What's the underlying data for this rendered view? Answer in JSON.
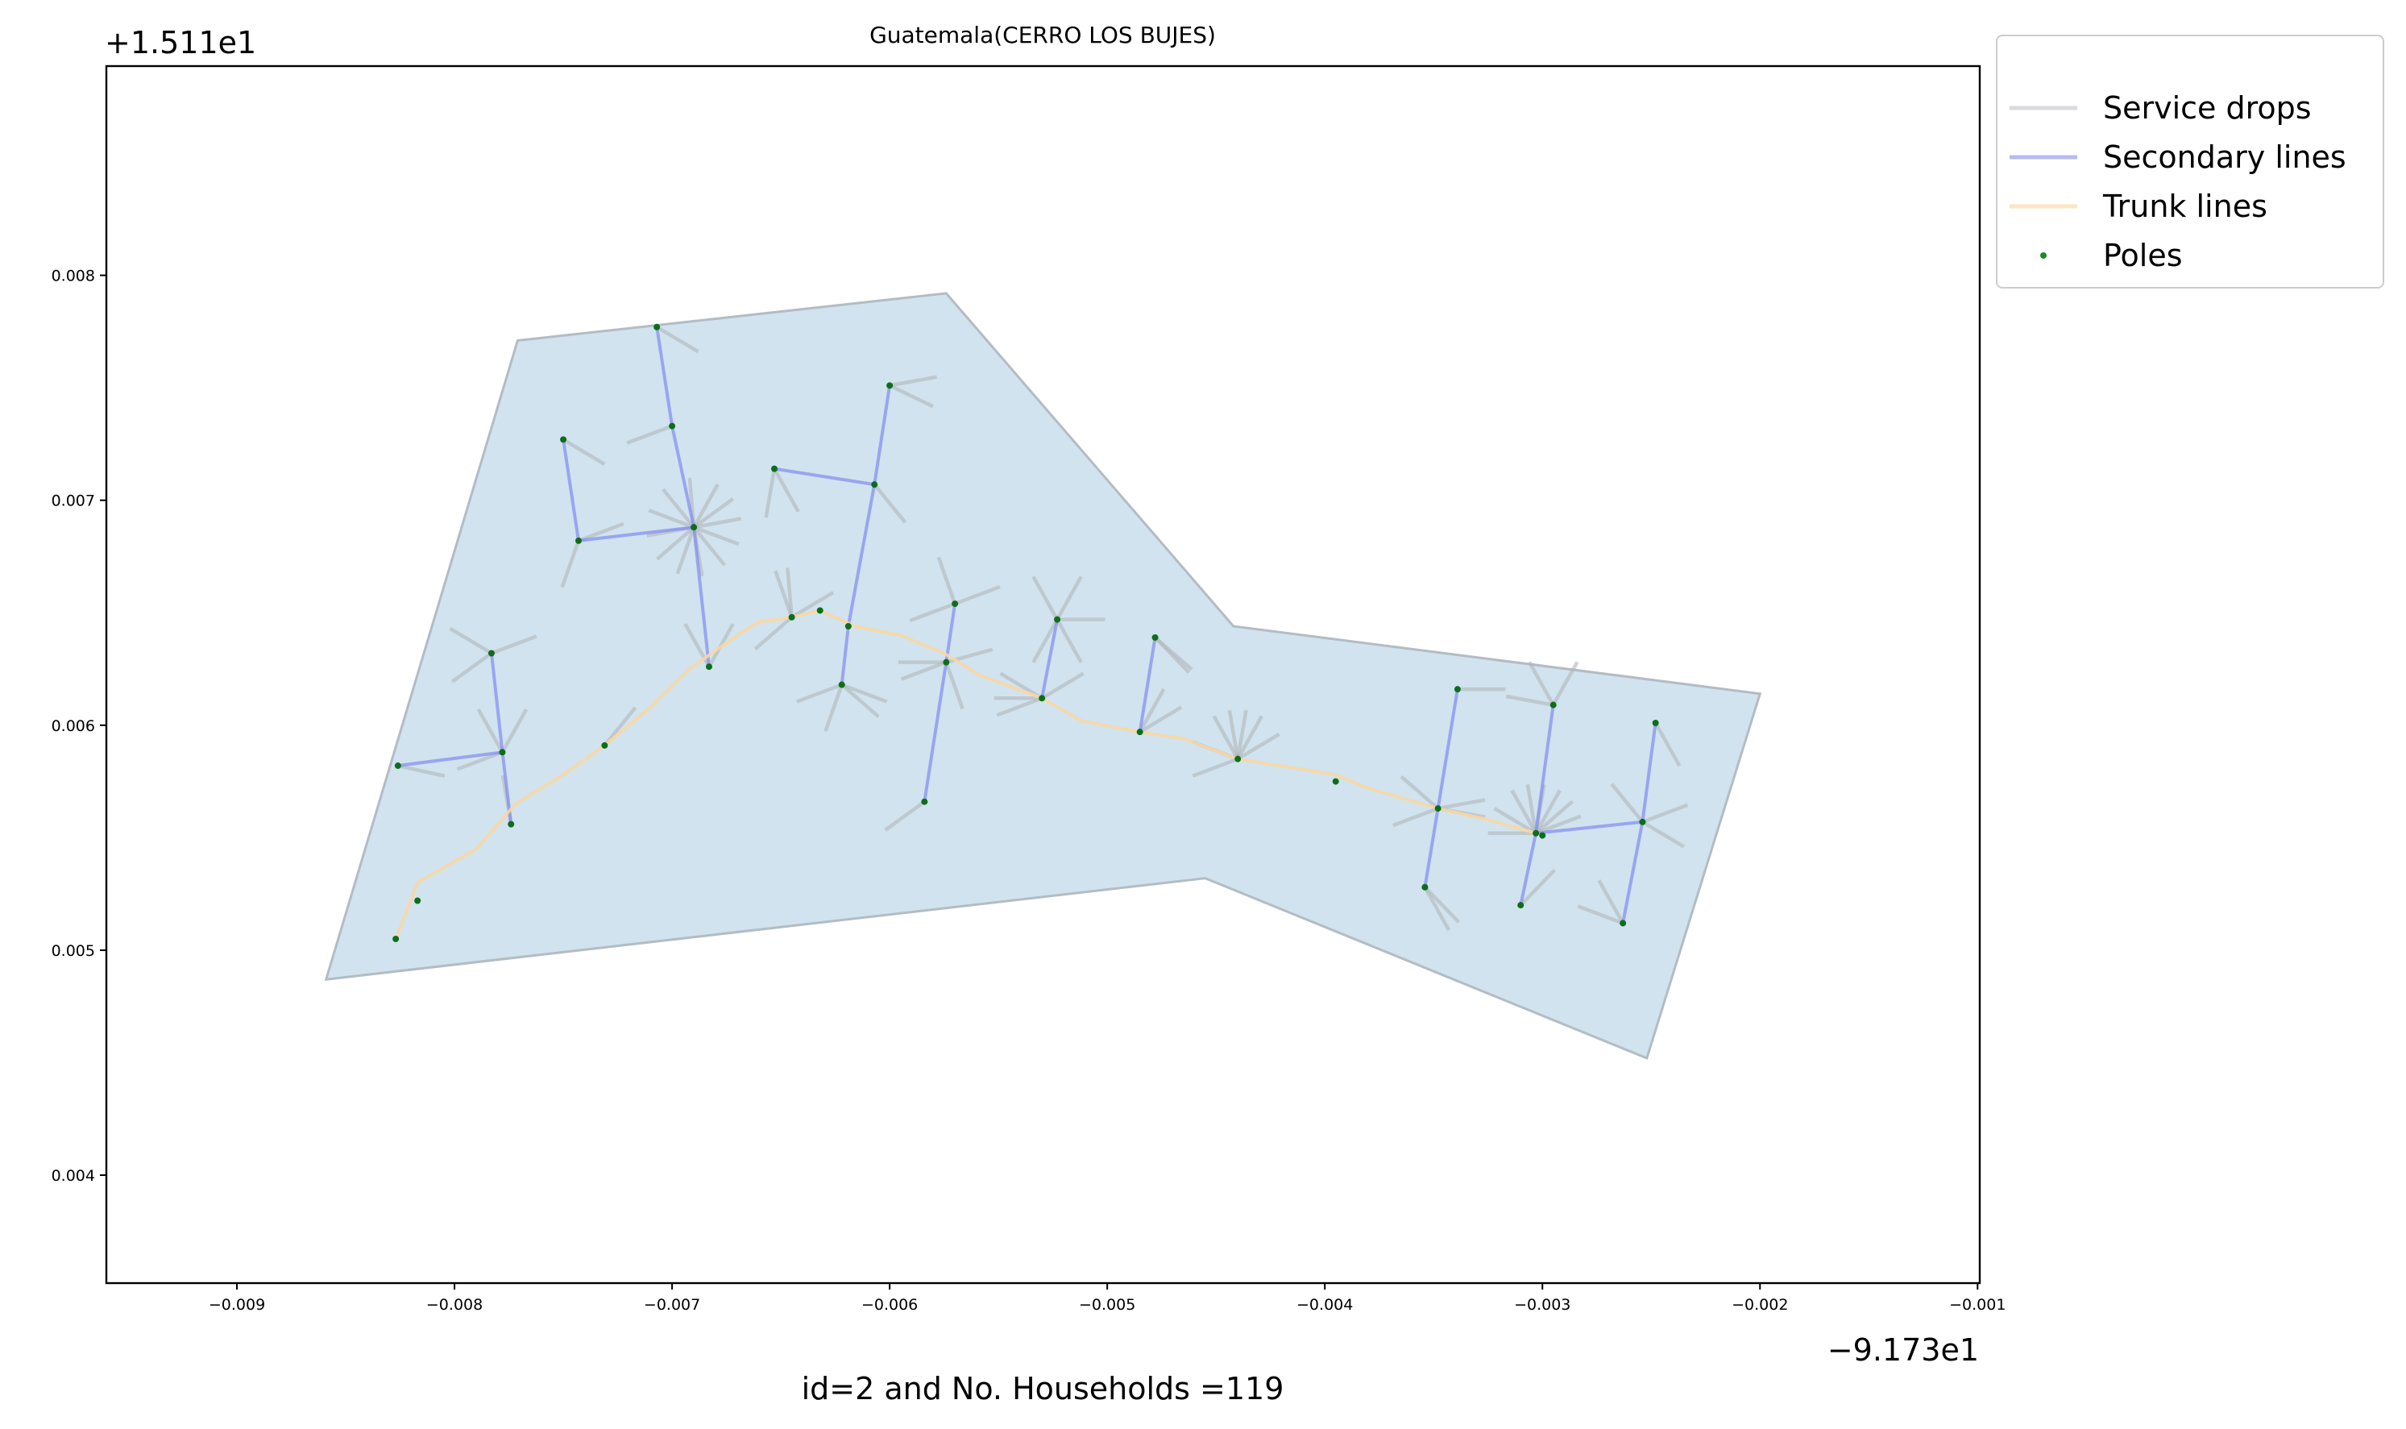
{
  "chart_data": {
    "type": "scatter",
    "title": "Guatemala(CERRO LOS BUJES)",
    "xlabel": "id=2 and No. Households =119",
    "ylabel": "",
    "x_offset_label": "−9.173e1",
    "y_offset_label": "+1.511e1",
    "xlim": [
      -0.0096,
      -0.00099
    ],
    "ylim": [
      0.00352,
      0.00893
    ],
    "x_ticks": [
      -0.009,
      -0.008,
      -0.007,
      -0.006,
      -0.005,
      -0.004,
      -0.003,
      -0.002,
      -0.001
    ],
    "x_tick_labels": [
      "−0.009",
      "−0.008",
      "−0.007",
      "−0.006",
      "−0.005",
      "−0.004",
      "−0.003",
      "−0.002",
      "−0.001"
    ],
    "y_ticks": [
      0.004,
      0.005,
      0.006,
      0.007,
      0.008
    ],
    "y_tick_labels": [
      "0.004",
      "0.005",
      "0.006",
      "0.007",
      "0.008"
    ],
    "grid": false,
    "legend_position": "outside-right",
    "colors": {
      "polygon_fill": "#d1e3ee",
      "polygon_edge": "#b3bcc4",
      "service_drops": "#b0b5bb",
      "secondary_lines": "#7b84f5",
      "trunk_lines": "#fbd7a0",
      "poles": "#0d6e1a"
    },
    "legend": [
      {
        "label": "Service drops",
        "type": "line",
        "color": "#d8dadd"
      },
      {
        "label": "Secondary lines",
        "type": "line",
        "color": "#b7baf2"
      },
      {
        "label": "Trunk lines",
        "type": "line",
        "color": "#fde6c2"
      },
      {
        "label": "Poles",
        "type": "dot",
        "color": "#1f8a2a"
      }
    ],
    "area_polygon": [
      [
        -0.00859,
        0.00487
      ],
      [
        -0.00771,
        0.00771
      ],
      [
        -0.00574,
        0.00792
      ],
      [
        -0.00442,
        0.00644
      ],
      [
        -0.002,
        0.00614
      ],
      [
        -0.00252,
        0.00452
      ],
      [
        -0.00455,
        0.00532
      ],
      [
        -0.00859,
        0.00487
      ]
    ],
    "trunk_line": [
      [
        -0.00827,
        0.00505
      ],
      [
        -0.00817,
        0.0053
      ],
      [
        -0.0079,
        0.00545
      ],
      [
        -0.00772,
        0.00565
      ],
      [
        -0.0075,
        0.00578
      ],
      [
        -0.00731,
        0.00591
      ],
      [
        -0.0071,
        0.00608
      ],
      [
        -0.00692,
        0.00625
      ],
      [
        -0.0067,
        0.0064
      ],
      [
        -0.0066,
        0.00646
      ],
      [
        -0.00645,
        0.00648
      ],
      [
        -0.00632,
        0.00651
      ],
      [
        -0.00616,
        0.00644
      ],
      [
        -0.00595,
        0.0064
      ],
      [
        -0.00575,
        0.00632
      ],
      [
        -0.00558,
        0.00622
      ],
      [
        -0.0053,
        0.00612
      ],
      [
        -0.00512,
        0.00602
      ],
      [
        -0.00485,
        0.00597
      ],
      [
        -0.00465,
        0.00594
      ],
      [
        -0.0044,
        0.00585
      ],
      [
        -0.00395,
        0.00578
      ],
      [
        -0.0038,
        0.00572
      ],
      [
        -0.00348,
        0.00563
      ],
      [
        -0.00325,
        0.00558
      ],
      [
        -0.00303,
        0.00552
      ]
    ],
    "secondary_lines": [
      [
        [
          -0.00826,
          0.00582
        ],
        [
          -0.00778,
          0.00588
        ],
        [
          -0.00774,
          0.00556
        ]
      ],
      [
        [
          -0.00778,
          0.00588
        ],
        [
          -0.00783,
          0.00632
        ]
      ],
      [
        [
          -0.00743,
          0.00682
        ],
        [
          -0.0075,
          0.00727
        ]
      ],
      [
        [
          -0.00743,
          0.00682
        ],
        [
          -0.0069,
          0.00688
        ],
        [
          -0.007,
          0.00733
        ],
        [
          -0.00707,
          0.00777
        ]
      ],
      [
        [
          -0.0069,
          0.00688
        ],
        [
          -0.00683,
          0.00626
        ]
      ],
      [
        [
          -0.00653,
          0.00714
        ],
        [
          -0.00607,
          0.00707
        ],
        [
          -0.006,
          0.00751
        ]
      ],
      [
        [
          -0.00607,
          0.00707
        ],
        [
          -0.00619,
          0.00644
        ],
        [
          -0.00622,
          0.00618
        ]
      ],
      [
        [
          -0.00584,
          0.00566
        ],
        [
          -0.00574,
          0.00628
        ],
        [
          -0.0057,
          0.00654
        ]
      ],
      [
        [
          -0.0053,
          0.00612
        ],
        [
          -0.00523,
          0.00647
        ]
      ],
      [
        [
          -0.00485,
          0.00597
        ],
        [
          -0.00478,
          0.00639
        ]
      ],
      [
        [
          -0.00354,
          0.00528
        ],
        [
          -0.00348,
          0.00563
        ],
        [
          -0.00339,
          0.00616
        ]
      ],
      [
        [
          -0.0031,
          0.0052
        ],
        [
          -0.00303,
          0.00552
        ],
        [
          -0.00295,
          0.00609
        ]
      ],
      [
        [
          -0.00303,
          0.00552
        ],
        [
          -0.00254,
          0.00557
        ],
        [
          -0.00248,
          0.00601
        ]
      ],
      [
        [
          -0.00254,
          0.00557
        ],
        [
          -0.00263,
          0.00512
        ]
      ]
    ],
    "service_drops_segment_length": 0.00022,
    "service_drops": [
      [
        -0.00826,
        0.00582,
        -12
      ],
      [
        -0.00778,
        0.00588,
        60
      ],
      [
        -0.00778,
        0.00588,
        120
      ],
      [
        -0.00778,
        0.00588,
        200
      ],
      [
        -0.00783,
        0.00632,
        20
      ],
      [
        -0.00783,
        0.00632,
        150
      ],
      [
        -0.00783,
        0.00632,
        215
      ],
      [
        -0.00774,
        0.00556,
        100
      ],
      [
        -0.0075,
        0.00727,
        -30
      ],
      [
        -0.00743,
        0.00682,
        20
      ],
      [
        -0.00743,
        0.00682,
        250
      ],
      [
        -0.0069,
        0.00688,
        10
      ],
      [
        -0.0069,
        0.00688,
        35
      ],
      [
        -0.0069,
        0.00688,
        60
      ],
      [
        -0.0069,
        0.00688,
        95
      ],
      [
        -0.0069,
        0.00688,
        130
      ],
      [
        -0.0069,
        0.00688,
        160
      ],
      [
        -0.0069,
        0.00688,
        190
      ],
      [
        -0.0069,
        0.00688,
        220
      ],
      [
        -0.0069,
        0.00688,
        250
      ],
      [
        -0.0069,
        0.00688,
        280
      ],
      [
        -0.0069,
        0.00688,
        310
      ],
      [
        -0.0069,
        0.00688,
        340
      ],
      [
        -0.007,
        0.00733,
        200
      ],
      [
        -0.00707,
        0.00777,
        -30
      ],
      [
        -0.00683,
        0.00626,
        60
      ],
      [
        -0.00683,
        0.00626,
        120
      ],
      [
        -0.00731,
        0.00591,
        50
      ],
      [
        -0.00645,
        0.00648,
        110
      ],
      [
        -0.00645,
        0.00648,
        95
      ],
      [
        -0.00645,
        0.00648,
        220
      ],
      [
        -0.00645,
        0.00648,
        30
      ],
      [
        -0.00653,
        0.00714,
        260
      ],
      [
        -0.00653,
        0.00714,
        300
      ],
      [
        -0.00607,
        0.00707,
        -50
      ],
      [
        -0.006,
        0.00751,
        10
      ],
      [
        -0.006,
        0.00751,
        -25
      ],
      [
        -0.00622,
        0.00618,
        -20
      ],
      [
        -0.00622,
        0.00618,
        -40
      ],
      [
        -0.00622,
        0.00618,
        200
      ],
      [
        -0.00622,
        0.00618,
        250
      ],
      [
        -0.00574,
        0.00628,
        180
      ],
      [
        -0.00574,
        0.00628,
        200
      ],
      [
        -0.00574,
        0.00628,
        290
      ],
      [
        -0.00574,
        0.00628,
        15
      ],
      [
        -0.0057,
        0.00654,
        110
      ],
      [
        -0.0057,
        0.00654,
        20
      ],
      [
        -0.0057,
        0.00654,
        200
      ],
      [
        -0.00584,
        0.00566,
        215
      ],
      [
        -0.00523,
        0.00647,
        0
      ],
      [
        -0.00523,
        0.00647,
        120
      ],
      [
        -0.00523,
        0.00647,
        300
      ],
      [
        -0.00523,
        0.00647,
        240
      ],
      [
        -0.00523,
        0.00647,
        60
      ],
      [
        -0.0053,
        0.00612,
        150
      ],
      [
        -0.0053,
        0.00612,
        180
      ],
      [
        -0.0053,
        0.00612,
        30
      ],
      [
        -0.0053,
        0.00612,
        200
      ],
      [
        -0.00478,
        0.00639,
        -45
      ],
      [
        -0.00478,
        0.00639,
        320
      ],
      [
        -0.00485,
        0.00597,
        60
      ],
      [
        -0.00485,
        0.00597,
        30
      ],
      [
        -0.0044,
        0.00585,
        80
      ],
      [
        -0.0044,
        0.00585,
        100
      ],
      [
        -0.0044,
        0.00585,
        120
      ],
      [
        -0.0044,
        0.00585,
        60
      ],
      [
        -0.0044,
        0.00585,
        30
      ],
      [
        -0.0044,
        0.00585,
        160
      ],
      [
        -0.0044,
        0.00585,
        200
      ],
      [
        -0.00348,
        0.00563,
        10
      ],
      [
        -0.00348,
        0.00563,
        140
      ],
      [
        -0.00348,
        0.00563,
        200
      ],
      [
        -0.00348,
        0.00563,
        350
      ],
      [
        -0.00354,
        0.00528,
        -45
      ],
      [
        -0.00354,
        0.00528,
        -60
      ],
      [
        -0.00339,
        0.00616,
        0
      ],
      [
        -0.00303,
        0.00552,
        20
      ],
      [
        -0.00303,
        0.00552,
        40
      ],
      [
        -0.00303,
        0.00552,
        60
      ],
      [
        -0.00303,
        0.00552,
        80
      ],
      [
        -0.00303,
        0.00552,
        100
      ],
      [
        -0.00303,
        0.00552,
        120
      ],
      [
        -0.00303,
        0.00552,
        150
      ],
      [
        -0.00303,
        0.00552,
        180
      ],
      [
        -0.0031,
        0.0052,
        45
      ],
      [
        -0.00295,
        0.00609,
        170
      ],
      [
        -0.00295,
        0.00609,
        60
      ],
      [
        -0.00295,
        0.00609,
        120
      ],
      [
        -0.00254,
        0.00557,
        130
      ],
      [
        -0.00254,
        0.00557,
        20
      ],
      [
        -0.00254,
        0.00557,
        330
      ],
      [
        -0.00248,
        0.00601,
        -60
      ],
      [
        -0.00263,
        0.00512,
        160
      ],
      [
        -0.00263,
        0.00512,
        120
      ]
    ],
    "poles": [
      [
        -0.00827,
        0.00505
      ],
      [
        -0.00817,
        0.00522
      ],
      [
        -0.00826,
        0.00582
      ],
      [
        -0.00783,
        0.00632
      ],
      [
        -0.00778,
        0.00588
      ],
      [
        -0.00774,
        0.00556
      ],
      [
        -0.0075,
        0.00727
      ],
      [
        -0.00743,
        0.00682
      ],
      [
        -0.00707,
        0.00777
      ],
      [
        -0.007,
        0.00733
      ],
      [
        -0.0069,
        0.00688
      ],
      [
        -0.00683,
        0.00626
      ],
      [
        -0.00731,
        0.00591
      ],
      [
        -0.00653,
        0.00714
      ],
      [
        -0.00645,
        0.00648
      ],
      [
        -0.00632,
        0.00651
      ],
      [
        -0.00622,
        0.00618
      ],
      [
        -0.00619,
        0.00644
      ],
      [
        -0.00607,
        0.00707
      ],
      [
        -0.006,
        0.00751
      ],
      [
        -0.00584,
        0.00566
      ],
      [
        -0.00574,
        0.00628
      ],
      [
        -0.0057,
        0.00654
      ],
      [
        -0.0053,
        0.00612
      ],
      [
        -0.00523,
        0.00647
      ],
      [
        -0.00485,
        0.00597
      ],
      [
        -0.00478,
        0.00639
      ],
      [
        -0.0044,
        0.00585
      ],
      [
        -0.00395,
        0.00575
      ],
      [
        -0.00354,
        0.00528
      ],
      [
        -0.00348,
        0.00563
      ],
      [
        -0.00339,
        0.00616
      ],
      [
        -0.0031,
        0.0052
      ],
      [
        -0.00303,
        0.00552
      ],
      [
        -0.003,
        0.00551
      ],
      [
        -0.00295,
        0.00609
      ],
      [
        -0.00263,
        0.00512
      ],
      [
        -0.00254,
        0.00557
      ],
      [
        -0.00248,
        0.00601
      ]
    ]
  }
}
